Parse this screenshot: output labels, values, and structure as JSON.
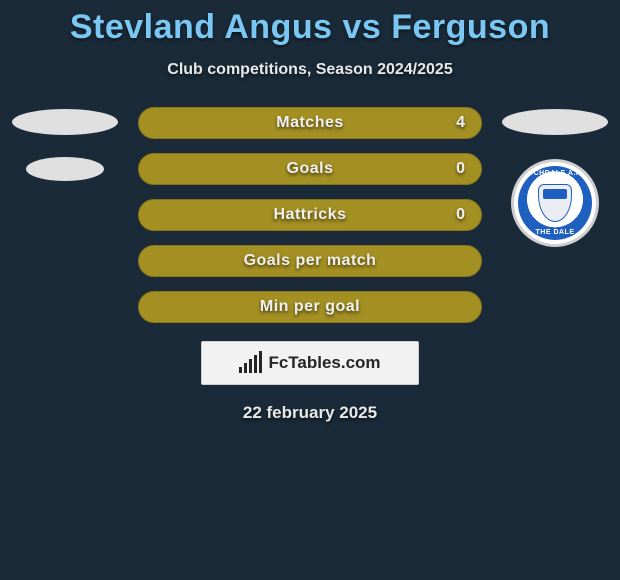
{
  "colors": {
    "page_bg": "#1a2a38",
    "title_color": "#79c7f2",
    "text_light": "#e8e8e8",
    "bar_fill": "#a38f22",
    "bar_border": "#8a7818",
    "ellipse_bg": "#e0e0e0",
    "badge_blue": "#1f5fbf",
    "logo_bg": "#f2f2f2",
    "logo_fg": "#262626"
  },
  "header": {
    "title": "Stevland Angus vs Ferguson",
    "subtitle": "Club competitions, Season 2024/2025"
  },
  "stats": {
    "rows": [
      {
        "label": "Matches",
        "value_right": "4"
      },
      {
        "label": "Goals",
        "value_right": "0"
      },
      {
        "label": "Hattricks",
        "value_right": "0"
      },
      {
        "label": "Goals per match",
        "value_right": ""
      },
      {
        "label": "Min per goal",
        "value_right": ""
      }
    ]
  },
  "right_badge": {
    "top_text": "ROCHDALE A.F.C",
    "bottom_text": "THE DALE"
  },
  "footer": {
    "logo_text": "FcTables.com",
    "logo_bar_heights": [
      6,
      10,
      14,
      18,
      22
    ],
    "date": "22 february 2025"
  }
}
